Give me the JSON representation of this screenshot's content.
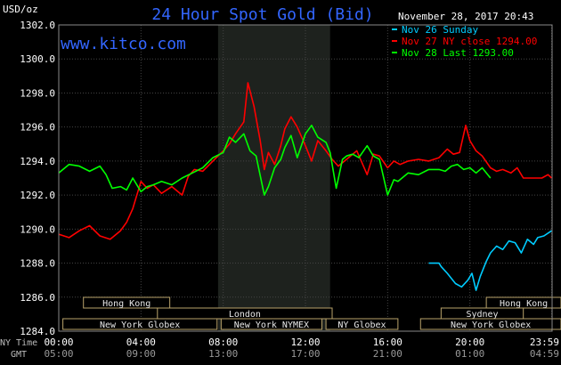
{
  "chart_data": {
    "type": "line",
    "title": "24 Hour Spot Gold (Bid)",
    "watermark": "www.kitco.com",
    "ylabel": "USD/oz",
    "timestamp": "November 28, 2017 20:43",
    "ylim": [
      1284.0,
      1302.0
    ],
    "yticks": [
      "1302.0",
      "1300.0",
      "1298.0",
      "1296.0",
      "1294.0",
      "1292.0",
      "1290.0",
      "1288.0",
      "1286.0",
      "1284.0"
    ],
    "ytick_values": [
      1302,
      1300,
      1298,
      1296,
      1294,
      1292,
      1290,
      1288,
      1286,
      1284
    ],
    "xlim": [
      0,
      24
    ],
    "xaxis": {
      "ny_label": "NY Time",
      "gmt_label": "GMT",
      "ny_ticks": [
        "00:00",
        "04:00",
        "08:00",
        "12:00",
        "16:00",
        "20:00",
        "23:59"
      ],
      "gmt_ticks": [
        "05:00",
        "09:00",
        "13:00",
        "17:00",
        "21:00",
        "01:00",
        "04:59"
      ],
      "tick_hours": [
        0,
        4,
        8,
        12,
        16,
        20,
        23.98
      ]
    },
    "shaded_region": [
      7.75,
      13.2
    ],
    "legend": {
      "placement": "top-right",
      "entries": [
        {
          "label": "Nov 26 Sunday",
          "color": "#00ccff"
        },
        {
          "label": "Nov 27 NY close 1294.00",
          "color": "#ff0000"
        },
        {
          "label": "Nov 28 Last 1293.00",
          "color": "#00ff00"
        }
      ]
    },
    "series": [
      {
        "name": "Nov 26 Sunday",
        "color": "#00ccff",
        "x": [
          18.0,
          18.5,
          18.6,
          18.9,
          19.3,
          19.6,
          19.9,
          20.1,
          20.3,
          20.5,
          20.8,
          21.0,
          21.3,
          21.6,
          21.9,
          22.2,
          22.5,
          22.8,
          23.1,
          23.3,
          23.6,
          23.98
        ],
        "y": [
          1288.0,
          1288.0,
          1287.8,
          1287.4,
          1286.8,
          1286.6,
          1287.0,
          1287.4,
          1286.4,
          1287.2,
          1288.1,
          1288.6,
          1289.0,
          1288.8,
          1289.3,
          1289.2,
          1288.6,
          1289.4,
          1289.1,
          1289.5,
          1289.6,
          1289.9
        ]
      },
      {
        "name": "Nov 27 NY close 1294.00",
        "color": "#ff0000",
        "x": [
          0,
          0.5,
          1.0,
          1.5,
          2.0,
          2.5,
          3.0,
          3.3,
          3.6,
          4.0,
          4.3,
          4.6,
          5.0,
          5.5,
          6.0,
          6.3,
          6.6,
          7.0,
          7.5,
          8.0,
          8.3,
          8.6,
          9.0,
          9.2,
          9.5,
          9.8,
          10.0,
          10.2,
          10.5,
          10.8,
          11.0,
          11.3,
          11.6,
          12.0,
          12.3,
          12.6,
          13.0,
          13.3,
          13.6,
          14.0,
          14.5,
          15.0,
          15.3,
          15.6,
          16.0,
          16.3,
          16.6,
          17.0,
          17.5,
          18.0,
          18.5,
          18.9,
          19.2,
          19.5,
          19.8,
          20.0,
          20.3,
          20.6,
          21.0,
          21.3,
          21.6,
          22.0,
          22.3,
          22.6,
          23.0,
          23.5,
          23.8,
          23.98
        ],
        "y": [
          1289.7,
          1289.5,
          1289.9,
          1290.2,
          1289.6,
          1289.4,
          1289.9,
          1290.4,
          1291.2,
          1292.8,
          1292.4,
          1292.6,
          1292.1,
          1292.5,
          1292.0,
          1293.1,
          1293.5,
          1293.4,
          1294.0,
          1294.6,
          1295.0,
          1295.6,
          1296.3,
          1298.6,
          1297.2,
          1295.2,
          1293.5,
          1294.5,
          1293.8,
          1294.9,
          1295.9,
          1296.6,
          1296.0,
          1294.9,
          1294.0,
          1295.2,
          1294.6,
          1294.1,
          1293.7,
          1294.1,
          1294.6,
          1293.2,
          1294.4,
          1294.3,
          1293.6,
          1294.0,
          1293.8,
          1294.0,
          1294.1,
          1294.0,
          1294.2,
          1294.7,
          1294.4,
          1294.5,
          1296.1,
          1295.2,
          1294.6,
          1294.3,
          1293.6,
          1293.4,
          1293.5,
          1293.3,
          1293.6,
          1293.0,
          1293.0,
          1293.0,
          1293.2,
          1293.0
        ]
      },
      {
        "name": "Nov 28 Last 1293.00",
        "color": "#00ff00",
        "x": [
          0,
          0.5,
          1.0,
          1.5,
          2.0,
          2.3,
          2.6,
          3.0,
          3.3,
          3.6,
          4.0,
          4.3,
          4.6,
          5.0,
          5.5,
          6.0,
          6.5,
          7.0,
          7.5,
          8.0,
          8.3,
          8.6,
          9.0,
          9.3,
          9.6,
          10.0,
          10.2,
          10.5,
          10.8,
          11.0,
          11.3,
          11.6,
          12.0,
          12.3,
          12.6,
          13.0,
          13.2,
          13.5,
          13.8,
          14.0,
          14.3,
          14.6,
          15.0,
          15.3,
          15.6,
          16.0,
          16.3,
          16.5,
          17.0,
          17.5,
          18.0,
          18.5,
          18.8,
          19.1,
          19.4,
          19.7,
          20.0,
          20.3,
          20.6,
          21.0
        ],
        "y": [
          1293.3,
          1293.8,
          1293.7,
          1293.4,
          1293.7,
          1293.2,
          1292.4,
          1292.5,
          1292.3,
          1293.0,
          1292.2,
          1292.5,
          1292.6,
          1292.8,
          1292.6,
          1293.0,
          1293.3,
          1293.6,
          1294.2,
          1294.5,
          1295.4,
          1295.1,
          1295.6,
          1294.6,
          1294.3,
          1292.0,
          1292.5,
          1293.6,
          1294.1,
          1294.8,
          1295.5,
          1294.2,
          1295.6,
          1296.1,
          1295.4,
          1295.1,
          1294.5,
          1292.4,
          1294.1,
          1294.3,
          1294.4,
          1294.2,
          1294.9,
          1294.3,
          1294.1,
          1292.0,
          1292.9,
          1292.8,
          1293.3,
          1293.2,
          1293.5,
          1293.5,
          1293.4,
          1293.7,
          1293.8,
          1293.5,
          1293.6,
          1293.3,
          1293.6,
          1293.0
        ]
      }
    ],
    "sessions": [
      {
        "label": "Hong Kong",
        "start": 1.2,
        "end": 5.4,
        "row": 0
      },
      {
        "label": "London",
        "start": 4.8,
        "end": 13.3,
        "row": 1
      },
      {
        "label": "New York Globex",
        "start": 0.2,
        "end": 7.7,
        "row": 2
      },
      {
        "label": "New York NYMEX",
        "start": 7.9,
        "end": 12.8,
        "row": 2
      },
      {
        "label": "NY Globex",
        "start": 13.0,
        "end": 16.5,
        "row": 2
      },
      {
        "label": "Hong Kong",
        "start": 20.8,
        "end": 24.5,
        "row": 0
      },
      {
        "label": "Sydney",
        "start": 18.6,
        "end": 22.6,
        "row": 1
      },
      {
        "label": "New York Globex",
        "start": 17.6,
        "end": 24.5,
        "row": 2
      }
    ]
  }
}
